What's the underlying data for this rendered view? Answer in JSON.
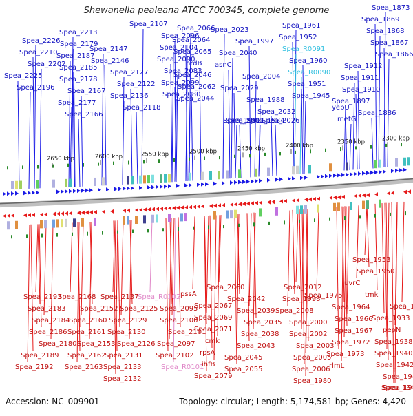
{
  "title": "Shewanella pealeana ATCC 700345, complete genome",
  "footer": {
    "accession": "Accession: NC_009901",
    "topology": "Topology: circular; Length: 5,174,581 bp; Genes: 4,420"
  },
  "colors": {
    "forward": "#1a1ae6",
    "reverse": "#e61a1a",
    "rna": "#33c0e0",
    "rna_reverse": "#e088c8",
    "backbone": "#888888",
    "tick": "#2a8a2a"
  },
  "scale_ticks": [
    "2300 kbp",
    "2350 kbp",
    "2400 kbp",
    "2450 kbp",
    "2500 kbp",
    "2550 kbp",
    "2600 kbp",
    "2650 kbp"
  ],
  "top_labels": [
    "Spea_1873",
    "Spea_1869",
    "Spea_1868",
    "Spea_1867",
    "Spea_1866",
    "Spea_1912",
    "Spea_1911",
    "Spea_1910",
    "Spea_1897",
    "Spea_1886",
    "Spea_1961",
    "Spea_1952",
    "Spea_R0091",
    "Spea_1960",
    "Spea_R0090",
    "Spea_1951",
    "Spea_1945",
    "yebU",
    "metG",
    "Spea_2023",
    "Spea_1997",
    "Spea_2040",
    "asnC",
    "Spea_2004",
    "Spea_2029",
    "Spea_1988",
    "Spea_2032",
    "Spea_1992",
    "Spea_2026",
    "Spea_1984",
    "Spea_2007",
    "Spea_2066",
    "Spea_2064",
    "Spea_2065",
    "nrdB",
    "Spea_2046",
    "Spea_2062",
    "Spea_2044",
    "Spea_2107",
    "Spea_2096",
    "Spea_2104",
    "Spea_2090",
    "Spea_2083",
    "Spea_2099",
    "Spea_2080",
    "Spea_2147",
    "Spea_2146",
    "Spea_2127",
    "Spea_2122",
    "Spea_2136",
    "Spea_2118",
    "Spea_2213",
    "Spea_2179",
    "Spea_2187",
    "Spea_2185",
    "Spea_2178",
    "Spea_2167",
    "Spea_2177",
    "Spea_2166",
    "Spea_2226",
    "Spea_2210",
    "Spea_2202",
    "Spea_2225",
    "Spea_2196"
  ],
  "bottom_labels": [
    "Spea_2193",
    "Spea_2183",
    "Spea_2184",
    "Spea_2186",
    "Spea_2180",
    "Spea_2189",
    "Spea_2192",
    "Spea_2168",
    "Spea_2152",
    "Spea_2160",
    "Spea_2161",
    "Spea_2153",
    "Spea_2162",
    "Spea_2163",
    "Spea_2137",
    "Spea_2125",
    "Spea_2129",
    "Spea_2130",
    "Spea_2126",
    "Spea_2131",
    "Spea_2133",
    "Spea_2132",
    "Spea_R0102",
    "Spea_2095",
    "Spea_2100",
    "Spea_2101",
    "Spea_2097",
    "Spea_2102",
    "Spea_R0101",
    "pssA",
    "Spea_2067",
    "Spea_2069",
    "Spea_2071",
    "cmk",
    "rpsA",
    "ihfB",
    "Spea_2079",
    "Spea_2060",
    "Spea_2042",
    "Spea_2039",
    "Spea_2035",
    "Spea_2038",
    "Spea_2043",
    "Spea_2045",
    "Spea_2055",
    "Spea_2012",
    "Spea_1998",
    "Spea_2008",
    "Spea_2000",
    "Spea_2002",
    "Spea_2003",
    "Spea_2005",
    "Spea_2006",
    "Spea_1980",
    "Spea_1975",
    "Spea_1964",
    "Spea_1966",
    "Spea_1967",
    "Spea_1972",
    "Spea_1973",
    "rlmL",
    "Spea_1953",
    "Spea_1950",
    "uvrC",
    "tmk",
    "Spea_1932",
    "Spea_1933",
    "pepN",
    "Spea_1938",
    "Spea_1940",
    "Spea_1942",
    "Spea_1943",
    "Spea_1944",
    "Spea_1947"
  ]
}
